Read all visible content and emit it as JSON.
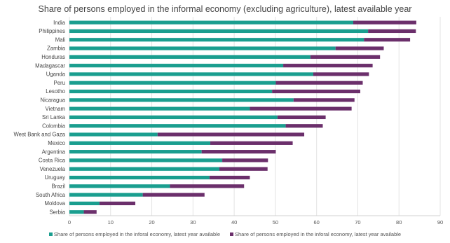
{
  "chart_data": {
    "type": "bar",
    "orientation": "horizontal",
    "stacked": true,
    "title": "Share of persons employed in the informal economy (excluding agriculture), latest available year",
    "xlabel": "",
    "ylabel": "",
    "xlim": [
      0,
      90
    ],
    "xticks": [
      "0",
      "10",
      "20",
      "30",
      "40",
      "50",
      "60",
      "70",
      "80",
      "90"
    ],
    "grid": "vertical",
    "legend_position": "bottom",
    "categories": [
      "India",
      "Philippines",
      "Mali",
      "Zambia",
      "Honduras",
      "Madagascar",
      "Uganda",
      "Peru",
      "Lesotho",
      "Nicaragua",
      "Vietnam",
      "Sri Lanka",
      "Colombia",
      "West Bank and Gaza",
      "Mexico",
      "Argentina",
      "Costa Rica",
      "Venezuela",
      "Uruguay",
      "Brazil",
      "South Africa",
      "Moldova",
      "Serbia"
    ],
    "series": [
      {
        "name": "Share of persons employed in the inforal economy, latest year available",
        "color": "#1a9e8f",
        "values": [
          68.9,
          72.5,
          71.5,
          64.6,
          58.5,
          51.9,
          59.2,
          50.1,
          49.2,
          54.4,
          43.8,
          50.5,
          52.5,
          21.4,
          34.2,
          32.1,
          37.1,
          36.4,
          34.0,
          24.4,
          17.8,
          7.3,
          3.5
        ]
      },
      {
        "name": "Share of persons employed in the inforal economy, latest year available",
        "color": "#6b2f6b",
        "values": [
          15.3,
          11.6,
          11.2,
          11.7,
          16.9,
          21.7,
          13.5,
          21.1,
          21.4,
          14.8,
          24.7,
          11.7,
          9.0,
          35.6,
          20.0,
          18.0,
          11.1,
          11.7,
          9.8,
          18.0,
          15.0,
          8.7,
          3.1
        ]
      }
    ]
  }
}
